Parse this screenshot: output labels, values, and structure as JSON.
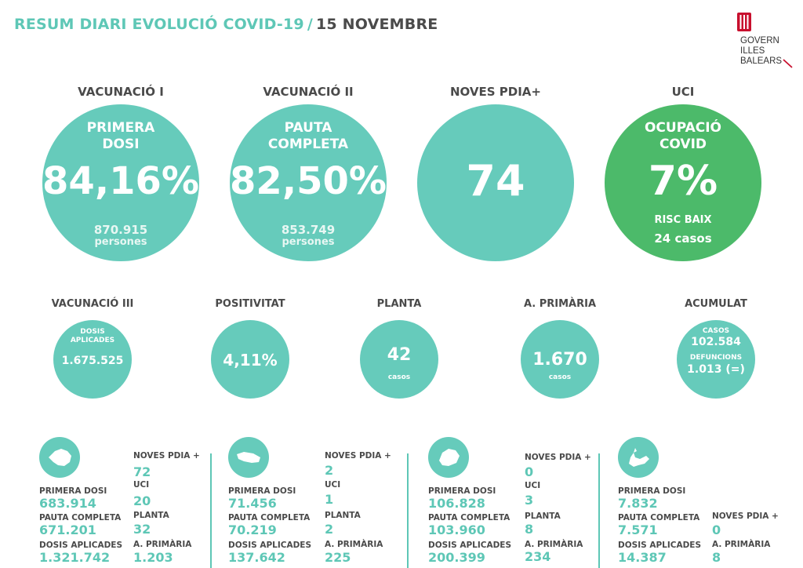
{
  "title": {
    "main": "RESUM DIARI EVOLUCIÓ COVID-19",
    "sep": "/",
    "date": "15 NOVEMBRE"
  },
  "logo": {
    "line1": "GOVERN",
    "line2": "ILLES",
    "line3": "BALEARS"
  },
  "big": [
    {
      "header": "VACUNACIÓ I",
      "cap1": "PRIMERA",
      "cap2": "DOSI",
      "value": "84,16%",
      "sub1": "870.915",
      "sub2": "persones"
    },
    {
      "header": "VACUNACIÓ II",
      "cap1": "PAUTA",
      "cap2": "COMPLETA",
      "value": "82,50%",
      "sub1": "853.749",
      "sub2": "persones"
    },
    {
      "header": "NOVES PDIA+",
      "value": "74"
    },
    {
      "header": "UCI",
      "cap1": "OCUPACIÓ",
      "cap2": "COVID",
      "value": "7%",
      "sub1": "RISC BAIX",
      "sub2": "24 casos"
    }
  ],
  "mid": [
    {
      "header": "VACUNACIÓ III",
      "cap1": "DOSIS",
      "cap2": "APLICADES",
      "value": "1.675.525"
    },
    {
      "header": "POSITIVITAT",
      "value": "4,11%"
    },
    {
      "header": "PLANTA",
      "value": "42",
      "sub": "casos"
    },
    {
      "header": "A. PRIMÀRIA",
      "value": "1.670",
      "sub": "casos"
    },
    {
      "header": "ACUMULAT",
      "k1": "CASOS",
      "v1": "102.584",
      "k2": "DEFUNCIONS",
      "v2": "1.013 (=)"
    }
  ],
  "islands": [
    {
      "icon": "mallorca-icon",
      "primera_k": "PRIMERA DOSI",
      "primera_v": "683.914",
      "pauta_k": "PAUTA COMPLETA",
      "pauta_v": "671.201",
      "dosis_k": "DOSIS APLICADES",
      "dosis_v": "1.321.742",
      "pdia_k": "NOVES PDIA +",
      "pdia_v": "72",
      "uci_k": "UCI",
      "uci_v": "20",
      "planta_k": "PLANTA",
      "planta_v": "32",
      "ap_k": "A. PRIMÀRIA",
      "ap_v": "1.203"
    },
    {
      "icon": "menorca-icon",
      "primera_k": "PRIMERA DOSI",
      "primera_v": "71.456",
      "pauta_k": "PAUTA COMPLETA",
      "pauta_v": "70.219",
      "dosis_k": "DOSIS APLICADES",
      "dosis_v": "137.642",
      "pdia_k": "NOVES PDIA +",
      "pdia_v": "2",
      "uci_k": "UCI",
      "uci_v": "1",
      "planta_k": "PLANTA",
      "planta_v": "2",
      "ap_k": "A. PRIMÀRIA",
      "ap_v": "225"
    },
    {
      "icon": "eivissa-icon",
      "primera_k": "PRIMERA DOSI",
      "primera_v": "106.828",
      "pauta_k": "PAUTA COMPLETA",
      "pauta_v": "103.960",
      "dosis_k": "DOSIS APLICADES",
      "dosis_v": "200.399",
      "pdia_k": "NOVES PDIA +",
      "pdia_v": "0",
      "uci_k": "UCI",
      "uci_v": "3",
      "planta_k": "PLANTA",
      "planta_v": "8",
      "ap_k": "A. PRIMÀRIA",
      "ap_v": "234"
    },
    {
      "icon": "formentera-icon",
      "primera_k": "PRIMERA DOSI",
      "primera_v": "7.832",
      "pauta_k": "PAUTA COMPLETA",
      "pauta_v": "7.571",
      "dosis_k": "DOSIS APLICADES",
      "dosis_v": "14.387",
      "pdia_k": "NOVES PDIA +",
      "pdia_v": "0",
      "ap_k": "A. PRIMÀRIA",
      "ap_v": "8"
    }
  ],
  "colors": {
    "teal": "#66cbbb",
    "green": "#4cba6a",
    "accent": "#5ec7b6",
    "logo_red": "#c8102e"
  }
}
